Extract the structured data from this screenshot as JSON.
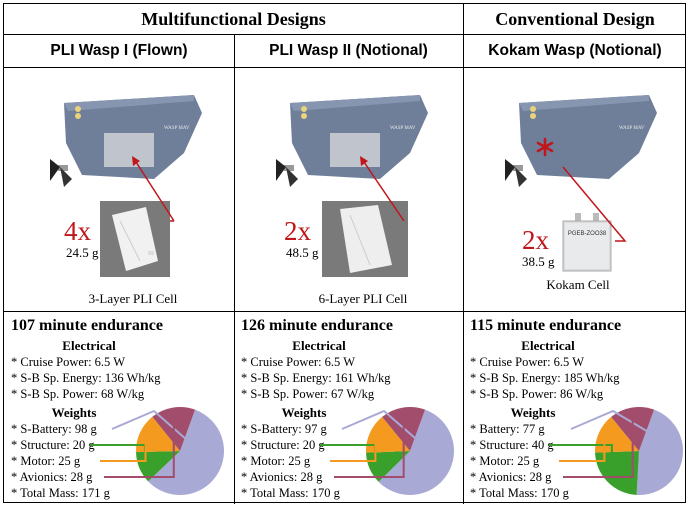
{
  "header": {
    "multifunctional": "Multifunctional Designs",
    "conventional": "Conventional Design"
  },
  "columns": [
    {
      "name": "PLI Wasp I (Flown)",
      "multiplier": "4x",
      "cell_mass": "24.5 g",
      "cell_label": "3-Layer PLI Cell",
      "endurance": "107 minute endurance",
      "electrical_title": "Electrical",
      "electrical": [
        "* Cruise Power: 6.5 W",
        "* S-B Sp. Energy: 136 Wh/kg",
        "* S-B Sp. Power: 68 W/kg"
      ],
      "weights_title": "Weights",
      "weights": [
        "* S-Battery: 98 g",
        "* Structure: 20 g",
        "* Motor: 25 g",
        "* Avionics: 28 g",
        "* Total Mass: 171 g"
      ],
      "pie": [
        98,
        20,
        25,
        28
      ]
    },
    {
      "name": "PLI Wasp II (Notional)",
      "multiplier": "2x",
      "cell_mass": "48.5 g",
      "cell_label": "6-Layer PLI Cell",
      "endurance": "126 minute endurance",
      "electrical_title": "Electrical",
      "electrical": [
        "* Cruise Power: 6.5 W",
        "* S-B Sp. Energy: 161 Wh/kg",
        "* S-B Sp. Power: 67 W/kg"
      ],
      "weights_title": "Weights",
      "weights": [
        "* S-Battery: 97 g",
        "* Structure: 20 g",
        "* Motor: 25 g",
        "* Avionics: 28 g",
        "* Total Mass: 170 g"
      ],
      "pie": [
        97,
        20,
        25,
        28
      ]
    },
    {
      "name": "Kokam Wasp (Notional)",
      "multiplier": "2x",
      "cell_mass": "38.5 g",
      "cell_label": "Kokam Cell",
      "cell_print": "PGEB-ZOO38",
      "endurance": "115 minute endurance",
      "electrical_title": "Electrical",
      "electrical": [
        "* Cruise Power: 6.5 W",
        "* S-B Sp. Energy: 185 Wh/kg",
        "* S-B Sp. Power: 86 W/kg"
      ],
      "weights_title": "Weights",
      "weights": [
        "* Battery: 77 g",
        "* Structure: 40 g",
        "* Motor: 25 g",
        "* Avionics: 28 g",
        "* Total Mass: 170 g"
      ],
      "pie": [
        77,
        40,
        25,
        28
      ]
    }
  ],
  "wing_label": "WASP MAV",
  "colors": {
    "battery": "#a9a9d6",
    "structure": "#3aa02c",
    "motor": "#f39a1f",
    "avionics": "#a14d6b",
    "accent_red": "#c0161c",
    "wing": "#6f7f9a"
  }
}
